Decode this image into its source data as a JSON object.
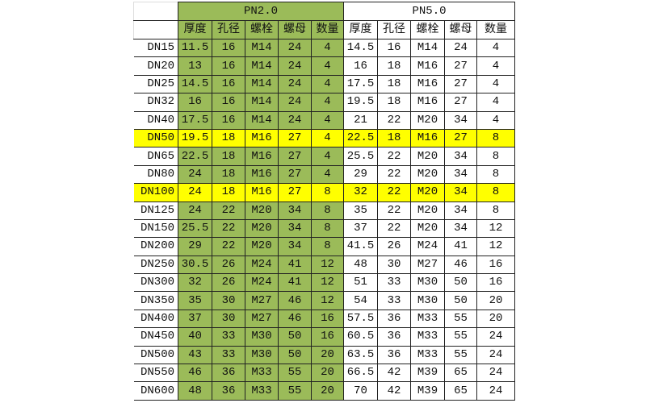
{
  "colors": {
    "pn20_fill": "#9bbb59",
    "highlight": "#ffff00"
  },
  "groups": [
    "PN2.0",
    "PN5.0"
  ],
  "subheaders": [
    "厚度",
    "孔径",
    "螺栓",
    "螺母",
    "数量"
  ],
  "highlight_rows": [
    "DN50",
    "DN100"
  ],
  "rows": [
    {
      "dn": "DN15",
      "pn20": [
        "11.5",
        "16",
        "M14",
        "24",
        "4"
      ],
      "pn50": [
        "14.5",
        "16",
        "M14",
        "24",
        "4"
      ]
    },
    {
      "dn": "DN20",
      "pn20": [
        "13",
        "16",
        "M14",
        "24",
        "4"
      ],
      "pn50": [
        "16",
        "18",
        "M16",
        "27",
        "4"
      ]
    },
    {
      "dn": "DN25",
      "pn20": [
        "14.5",
        "16",
        "M14",
        "24",
        "4"
      ],
      "pn50": [
        "17.5",
        "18",
        "M16",
        "27",
        "4"
      ]
    },
    {
      "dn": "DN32",
      "pn20": [
        "16",
        "16",
        "M14",
        "24",
        "4"
      ],
      "pn50": [
        "19.5",
        "18",
        "M16",
        "27",
        "4"
      ]
    },
    {
      "dn": "DN40",
      "pn20": [
        "17.5",
        "16",
        "M14",
        "24",
        "4"
      ],
      "pn50": [
        "21",
        "22",
        "M20",
        "34",
        "4"
      ]
    },
    {
      "dn": "DN50",
      "pn20": [
        "19.5",
        "18",
        "M16",
        "27",
        "4"
      ],
      "pn50": [
        "22.5",
        "18",
        "M16",
        "27",
        "8"
      ]
    },
    {
      "dn": "DN65",
      "pn20": [
        "22.5",
        "18",
        "M16",
        "27",
        "4"
      ],
      "pn50": [
        "25.5",
        "22",
        "M20",
        "34",
        "8"
      ]
    },
    {
      "dn": "DN80",
      "pn20": [
        "24",
        "18",
        "M16",
        "27",
        "4"
      ],
      "pn50": [
        "29",
        "22",
        "M20",
        "34",
        "8"
      ]
    },
    {
      "dn": "DN100",
      "pn20": [
        "24",
        "18",
        "M16",
        "27",
        "8"
      ],
      "pn50": [
        "32",
        "22",
        "M20",
        "34",
        "8"
      ]
    },
    {
      "dn": "DN125",
      "pn20": [
        "24",
        "22",
        "M20",
        "34",
        "8"
      ],
      "pn50": [
        "35",
        "22",
        "M20",
        "34",
        "8"
      ]
    },
    {
      "dn": "DN150",
      "pn20": [
        "25.5",
        "22",
        "M20",
        "34",
        "8"
      ],
      "pn50": [
        "37",
        "22",
        "M20",
        "34",
        "12"
      ]
    },
    {
      "dn": "DN200",
      "pn20": [
        "29",
        "22",
        "M20",
        "34",
        "8"
      ],
      "pn50": [
        "41.5",
        "26",
        "M24",
        "41",
        "12"
      ]
    },
    {
      "dn": "DN250",
      "pn20": [
        "30.5",
        "26",
        "M24",
        "41",
        "12"
      ],
      "pn50": [
        "48",
        "30",
        "M27",
        "46",
        "16"
      ]
    },
    {
      "dn": "DN300",
      "pn20": [
        "32",
        "26",
        "M24",
        "41",
        "12"
      ],
      "pn50": [
        "51",
        "33",
        "M30",
        "50",
        "16"
      ]
    },
    {
      "dn": "DN350",
      "pn20": [
        "35",
        "30",
        "M27",
        "46",
        "12"
      ],
      "pn50": [
        "54",
        "33",
        "M30",
        "50",
        "20"
      ]
    },
    {
      "dn": "DN400",
      "pn20": [
        "37",
        "30",
        "M27",
        "46",
        "16"
      ],
      "pn50": [
        "57.5",
        "36",
        "M33",
        "55",
        "20"
      ]
    },
    {
      "dn": "DN450",
      "pn20": [
        "40",
        "33",
        "M30",
        "50",
        "16"
      ],
      "pn50": [
        "60.5",
        "36",
        "M33",
        "55",
        "24"
      ]
    },
    {
      "dn": "DN500",
      "pn20": [
        "43",
        "33",
        "M30",
        "50",
        "20"
      ],
      "pn50": [
        "63.5",
        "36",
        "M33",
        "55",
        "24"
      ]
    },
    {
      "dn": "DN550",
      "pn20": [
        "46",
        "36",
        "M33",
        "55",
        "20"
      ],
      "pn50": [
        "66.5",
        "42",
        "M39",
        "65",
        "24"
      ]
    },
    {
      "dn": "DN600",
      "pn20": [
        "48",
        "36",
        "M33",
        "55",
        "20"
      ],
      "pn50": [
        "70",
        "42",
        "M39",
        "65",
        "24"
      ]
    }
  ]
}
